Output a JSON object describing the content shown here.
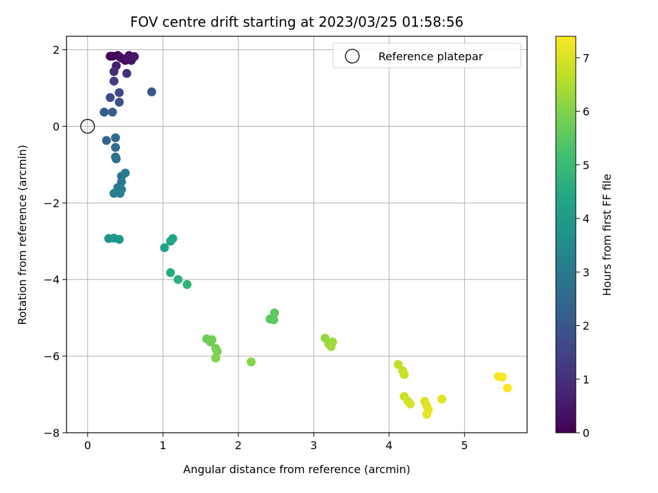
{
  "chart_data": {
    "type": "scatter",
    "title": "FOV centre drift starting at 2023/03/25 01:58:56",
    "xlabel": "Angular distance from reference (arcmin)",
    "ylabel": "Rotation from reference (arcmin)",
    "xlim": [
      -0.28,
      5.83
    ],
    "ylim": [
      -8.0,
      2.35
    ],
    "x_ticks": [
      0,
      1,
      2,
      3,
      4,
      5
    ],
    "y_ticks": [
      2,
      0,
      -2,
      -4,
      -6,
      -8
    ],
    "x_tick_labels": [
      "0",
      "1",
      "2",
      "3",
      "4",
      "5"
    ],
    "y_tick_labels": [
      "2",
      "0",
      "−2",
      "−4",
      "−6",
      "−8"
    ],
    "grid": true,
    "legend": {
      "placement": "top-right",
      "entries": [
        "Reference platepar"
      ]
    },
    "reference_point": {
      "x": 0,
      "y": 0
    },
    "colormap": "viridis",
    "colorbar": {
      "label": "Hours from first FF file",
      "range": [
        0,
        7.4
      ],
      "ticks": [
        0,
        1,
        2,
        3,
        4,
        5,
        6,
        7
      ],
      "tick_labels": [
        "0",
        "1",
        "2",
        "3",
        "4",
        "5",
        "6",
        "7"
      ]
    },
    "points": [
      {
        "x": 0.3,
        "y": 1.83,
        "t": 0.05
      },
      {
        "x": 0.33,
        "y": 1.83,
        "t": 0.1
      },
      {
        "x": 0.4,
        "y": 1.85,
        "t": 0.15
      },
      {
        "x": 0.42,
        "y": 1.82,
        "t": 0.2
      },
      {
        "x": 0.45,
        "y": 1.78,
        "t": 0.25
      },
      {
        "x": 0.5,
        "y": 1.72,
        "t": 0.3
      },
      {
        "x": 0.55,
        "y": 1.85,
        "t": 0.35
      },
      {
        "x": 0.58,
        "y": 1.72,
        "t": 0.4
      },
      {
        "x": 0.62,
        "y": 1.82,
        "t": 0.45
      },
      {
        "x": 0.38,
        "y": 1.58,
        "t": 0.6
      },
      {
        "x": 0.35,
        "y": 1.43,
        "t": 0.9
      },
      {
        "x": 0.52,
        "y": 1.38,
        "t": 1.0
      },
      {
        "x": 0.35,
        "y": 1.18,
        "t": 1.3
      },
      {
        "x": 0.42,
        "y": 0.88,
        "t": 1.6
      },
      {
        "x": 0.3,
        "y": 0.75,
        "t": 1.7
      },
      {
        "x": 0.42,
        "y": 0.63,
        "t": 1.8
      },
      {
        "x": 0.85,
        "y": 0.9,
        "t": 2.0
      },
      {
        "x": 0.22,
        "y": 0.37,
        "t": 2.1
      },
      {
        "x": 0.33,
        "y": 0.37,
        "t": 2.2
      },
      {
        "x": 0.25,
        "y": -0.37,
        "t": 2.4
      },
      {
        "x": 0.37,
        "y": -0.3,
        "t": 2.5
      },
      {
        "x": 0.37,
        "y": -0.55,
        "t": 2.6
      },
      {
        "x": 0.37,
        "y": -0.8,
        "t": 2.7
      },
      {
        "x": 0.38,
        "y": -0.85,
        "t": 2.75
      },
      {
        "x": 0.45,
        "y": -1.3,
        "t": 2.9
      },
      {
        "x": 0.5,
        "y": -1.22,
        "t": 2.95
      },
      {
        "x": 0.45,
        "y": -1.45,
        "t": 3.0
      },
      {
        "x": 0.4,
        "y": -1.6,
        "t": 3.05
      },
      {
        "x": 0.45,
        "y": -1.65,
        "t": 3.1
      },
      {
        "x": 0.35,
        "y": -1.75,
        "t": 3.15
      },
      {
        "x": 0.43,
        "y": -1.75,
        "t": 3.2
      },
      {
        "x": 0.28,
        "y": -2.93,
        "t": 3.8
      },
      {
        "x": 0.35,
        "y": -2.92,
        "t": 3.85
      },
      {
        "x": 0.42,
        "y": -2.95,
        "t": 3.9
      },
      {
        "x": 1.02,
        "y": -3.17,
        "t": 4.2
      },
      {
        "x": 1.1,
        "y": -3.0,
        "t": 4.25
      },
      {
        "x": 1.13,
        "y": -2.93,
        "t": 4.3
      },
      {
        "x": 1.1,
        "y": -3.82,
        "t": 4.6
      },
      {
        "x": 1.2,
        "y": -4.0,
        "t": 4.7
      },
      {
        "x": 1.32,
        "y": -4.13,
        "t": 4.8
      },
      {
        "x": 2.42,
        "y": -5.03,
        "t": 5.5
      },
      {
        "x": 2.47,
        "y": -5.05,
        "t": 5.55
      },
      {
        "x": 2.48,
        "y": -4.87,
        "t": 5.6
      },
      {
        "x": 1.58,
        "y": -5.55,
        "t": 5.7
      },
      {
        "x": 1.63,
        "y": -5.63,
        "t": 5.75
      },
      {
        "x": 1.65,
        "y": -5.57,
        "t": 5.8
      },
      {
        "x": 1.7,
        "y": -5.8,
        "t": 5.85
      },
      {
        "x": 1.72,
        "y": -5.88,
        "t": 5.9
      },
      {
        "x": 1.7,
        "y": -6.05,
        "t": 5.95
      },
      {
        "x": 2.17,
        "y": -6.15,
        "t": 6.05
      },
      {
        "x": 3.15,
        "y": -5.53,
        "t": 6.2
      },
      {
        "x": 3.2,
        "y": -5.68,
        "t": 6.25
      },
      {
        "x": 3.25,
        "y": -5.63,
        "t": 6.3
      },
      {
        "x": 3.23,
        "y": -5.75,
        "t": 6.35
      },
      {
        "x": 4.12,
        "y": -6.22,
        "t": 6.7
      },
      {
        "x": 4.18,
        "y": -6.38,
        "t": 6.75
      },
      {
        "x": 4.2,
        "y": -6.48,
        "t": 6.8
      },
      {
        "x": 4.2,
        "y": -7.05,
        "t": 6.85
      },
      {
        "x": 4.25,
        "y": -7.18,
        "t": 6.9
      },
      {
        "x": 4.28,
        "y": -7.25,
        "t": 6.95
      },
      {
        "x": 4.47,
        "y": -7.18,
        "t": 7.0
      },
      {
        "x": 4.5,
        "y": -7.3,
        "t": 7.05
      },
      {
        "x": 4.52,
        "y": -7.4,
        "t": 7.1
      },
      {
        "x": 4.5,
        "y": -7.52,
        "t": 7.15
      },
      {
        "x": 4.7,
        "y": -7.12,
        "t": 7.05
      },
      {
        "x": 5.45,
        "y": -6.53,
        "t": 7.3
      },
      {
        "x": 5.5,
        "y": -6.55,
        "t": 7.35
      },
      {
        "x": 5.57,
        "y": -6.83,
        "t": 7.4
      }
    ]
  }
}
